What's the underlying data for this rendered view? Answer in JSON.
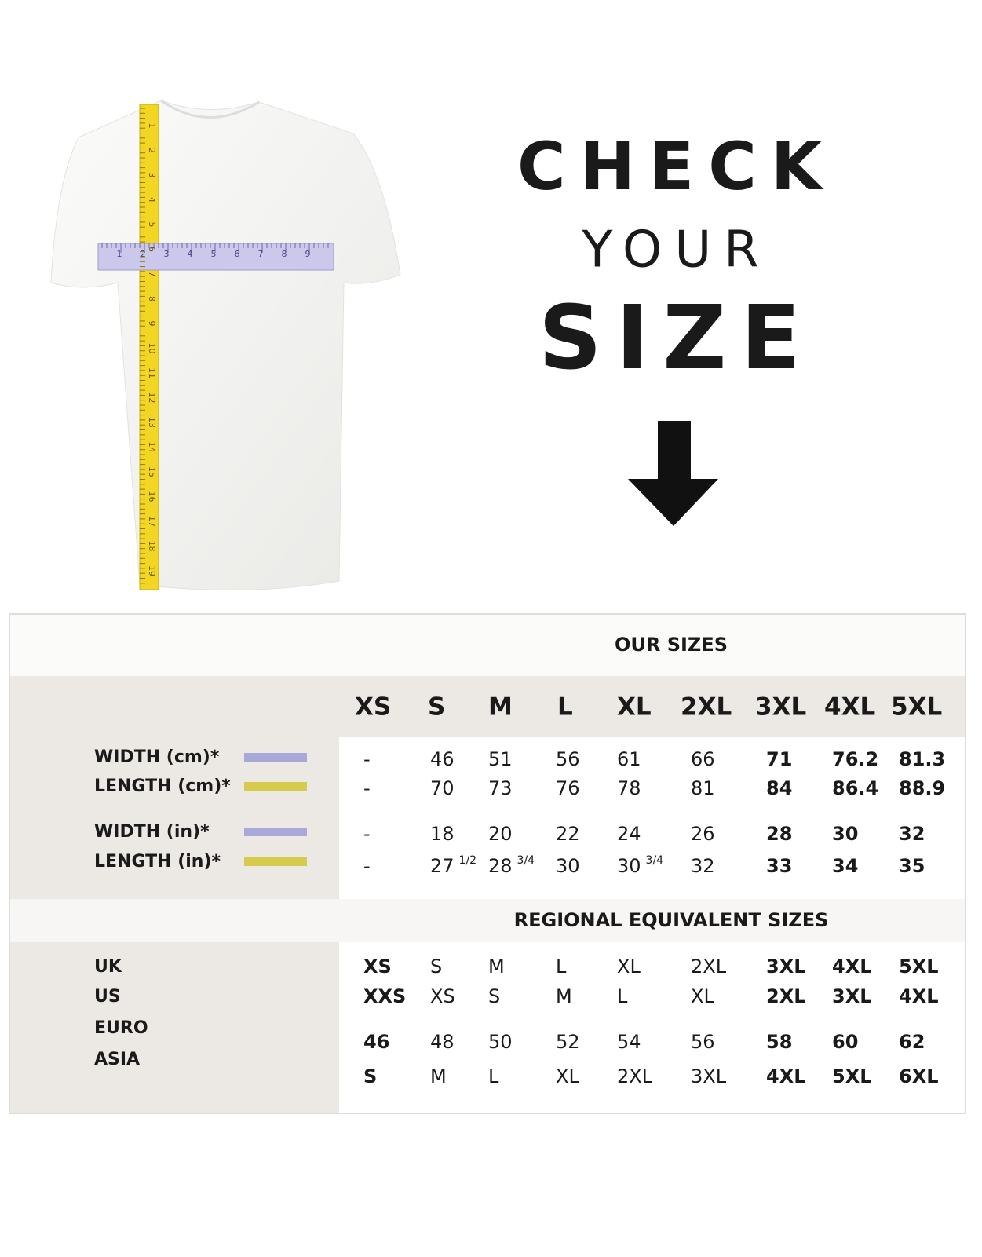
{
  "heading": {
    "line1": "CHECK",
    "line2": "YOUR",
    "line3": "SIZE"
  },
  "ruler": {
    "horizontal": [
      1,
      2,
      3,
      4,
      5,
      6,
      7,
      8,
      9
    ],
    "vertical": [
      1,
      2,
      3,
      4,
      5,
      6,
      7,
      8,
      9,
      10,
      11,
      12,
      13,
      14,
      15,
      16,
      17,
      18,
      19
    ]
  },
  "table": {
    "title": "OUR SIZES",
    "sizes": [
      "XS",
      "S",
      "M",
      "L",
      "XL",
      "2XL",
      "3XL",
      "4XL",
      "5XL"
    ],
    "measurements": [
      {
        "label": "WIDTH (cm)*",
        "color": "#a9a9d9",
        "values": [
          "-",
          "46",
          "51",
          "56",
          "61",
          "66",
          "71",
          "76.2",
          "81.3"
        ]
      },
      {
        "label": "LENGTH (cm)*",
        "color": "#d6cb4f",
        "values": [
          "-",
          "70",
          "73",
          "76",
          "78",
          "81",
          "84",
          "86.4",
          "88.9"
        ]
      },
      {
        "label": "WIDTH (in)*",
        "color": "#a9a9d9",
        "values": [
          "-",
          "18",
          "20",
          "22",
          "24",
          "26",
          "28",
          "30",
          "32"
        ]
      },
      {
        "label": "LENGTH (in)*",
        "color": "#d6cb4f",
        "values": [
          "-",
          {
            "whole": "27",
            "fraction": "1/2"
          },
          {
            "whole": "28",
            "fraction": "3/4"
          },
          "30",
          {
            "whole": "30",
            "fraction": "3/4"
          },
          "32",
          "33",
          "34",
          "35"
        ]
      }
    ],
    "regional_title": "REGIONAL EQUIVALENT SIZES",
    "regional": [
      {
        "label": "UK",
        "values": [
          "XS",
          "S",
          "M",
          "L",
          "XL",
          "2XL",
          "3XL",
          "4XL",
          "5XL"
        ]
      },
      {
        "label": "US",
        "values": [
          "XXS",
          "XS",
          "S",
          "M",
          "L",
          "XL",
          "2XL",
          "3XL",
          "4XL"
        ]
      },
      {
        "label": "EURO",
        "values": [
          "46",
          "48",
          "50",
          "52",
          "54",
          "56",
          "58",
          "60",
          "62"
        ]
      },
      {
        "label": "ASIA",
        "values": [
          "S",
          "M",
          "L",
          "XL",
          "2XL",
          "3XL",
          "4XL",
          "5XL",
          "6XL"
        ]
      }
    ]
  }
}
